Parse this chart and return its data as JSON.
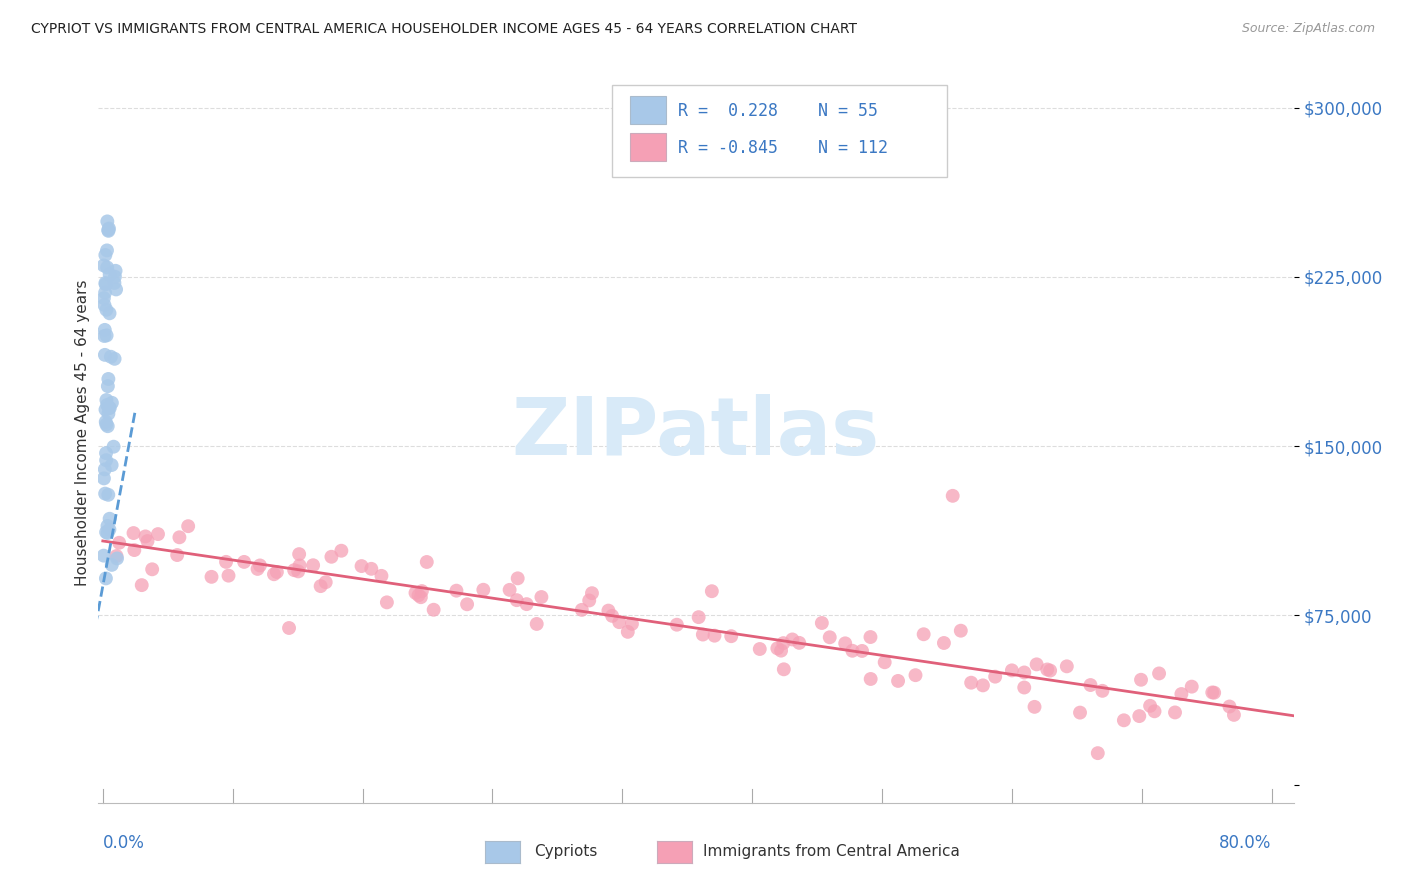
{
  "title": "CYPRIOT VS IMMIGRANTS FROM CENTRAL AMERICA HOUSEHOLDER INCOME AGES 45 - 64 YEARS CORRELATION CHART",
  "source": "Source: ZipAtlas.com",
  "ylabel": "Householder Income Ages 45 - 64 years",
  "ytick_labels": [
    "",
    "$75,000",
    "$150,000",
    "$225,000",
    "$300,000"
  ],
  "ytick_values": [
    0,
    75000,
    150000,
    225000,
    300000
  ],
  "xlim": [
    -0.003,
    0.815
  ],
  "ylim": [
    -8000,
    320000
  ],
  "cypriot_color": "#a8c8e8",
  "immigrant_color": "#f5a0b5",
  "trendline_cypriot_color": "#5b9bd5",
  "trendline_immigrant_color": "#e0607a",
  "watermark_color": "#d8eaf8",
  "background_color": "#ffffff",
  "grid_color": "#dddddd",
  "ytick_color": "#3b78c3",
  "xlabel_color": "#3b78c3",
  "source_color": "#999999",
  "title_color": "#222222",
  "legend_text_color": "#3b78c3",
  "legend_border_color": "#cccccc",
  "bottom_text_color": "#333333",
  "cypriot_scatter_size": 100,
  "immigrant_scatter_size": 100
}
